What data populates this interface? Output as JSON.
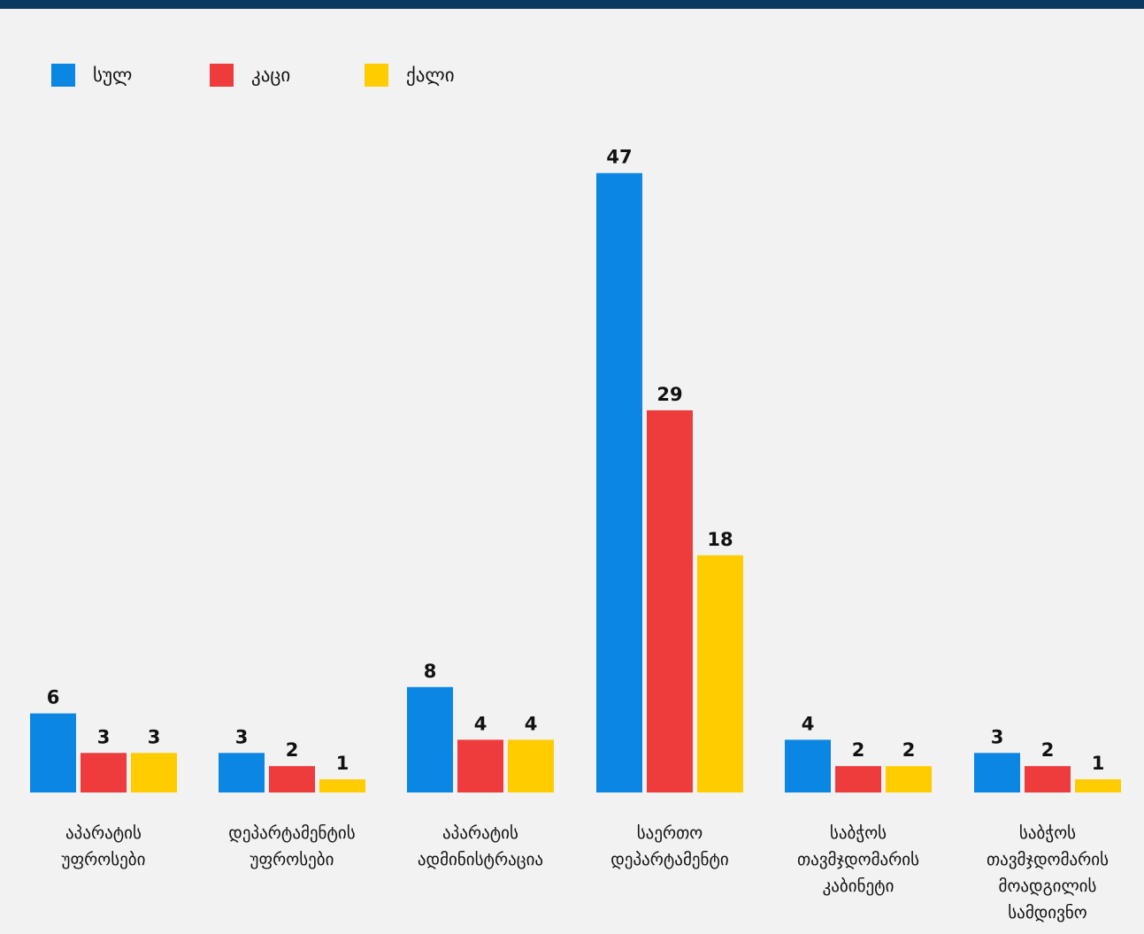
{
  "colors": {
    "top_bar": "#0b3a61",
    "background": "#f2f2f2"
  },
  "chart_data": {
    "type": "bar",
    "title": "",
    "xlabel": "",
    "ylabel": "",
    "ylim": [
      0,
      47
    ],
    "grid": false,
    "legend_position": "top-left",
    "categories": [
      [
        "აპარატის",
        "უფროსები"
      ],
      [
        "დეპარტამენტის",
        "უფროსები"
      ],
      [
        "აპარატის",
        "ადმინისტრაცია"
      ],
      [
        "საერთო",
        "დეპარტამენტი"
      ],
      [
        "საბჭოს",
        "თავმჯდომარის",
        "კაბინეტი"
      ],
      [
        "საბჭოს",
        "თავმჯდომარის",
        "მოადგილის",
        "სამდივნო"
      ]
    ],
    "series": [
      {
        "name": "სულ",
        "color": "#0b86e3",
        "values": [
          6,
          3,
          8,
          47,
          4,
          3
        ]
      },
      {
        "name": "კაცი",
        "color": "#ee3b3b",
        "values": [
          3,
          2,
          4,
          29,
          2,
          2
        ]
      },
      {
        "name": "ქალი",
        "color": "#ffcc00",
        "values": [
          3,
          1,
          4,
          18,
          2,
          1
        ]
      }
    ]
  }
}
